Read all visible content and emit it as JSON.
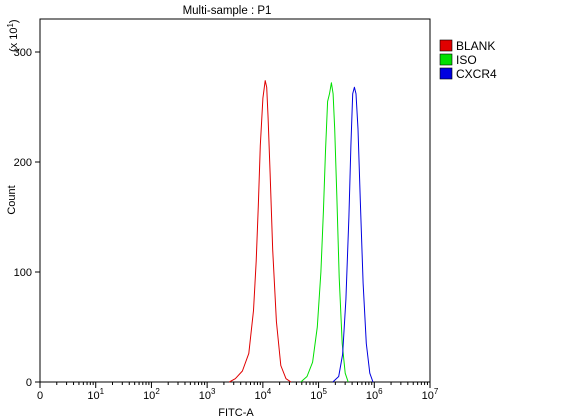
{
  "chart_data": {
    "type": "line",
    "title": "Multi-sample : P1",
    "xlabel": "FITC-A",
    "ylabel": "Count",
    "y_multiplier_label": "(x 10",
    "y_multiplier_exponent": "1",
    "y_multiplier_close": ")",
    "x_scale": "log",
    "xlim": [
      1,
      10000000
    ],
    "ylim": [
      0,
      330
    ],
    "x_ticks": [
      {
        "base": "0",
        "exp": "",
        "value": 1
      },
      {
        "base": "10",
        "exp": "1",
        "value": 10
      },
      {
        "base": "10",
        "exp": "2",
        "value": 100
      },
      {
        "base": "10",
        "exp": "3",
        "value": 1000
      },
      {
        "base": "10",
        "exp": "4",
        "value": 10000
      },
      {
        "base": "10",
        "exp": "5",
        "value": 100000
      },
      {
        "base": "10",
        "exp": "6",
        "value": 1000000
      },
      {
        "base": "10",
        "exp": "7",
        "value": 10000000
      }
    ],
    "y_ticks": [
      0,
      100,
      200,
      300
    ],
    "legend_position": "top-right",
    "series": [
      {
        "name": "BLANK",
        "color": "#e00000",
        "x": [
          2500,
          3200,
          4300,
          5600,
          6800,
          7600,
          8300,
          9000,
          10000,
          11000,
          11700,
          12400,
          13500,
          15000,
          17500,
          21000,
          26000,
          32000
        ],
        "y": [
          0,
          3,
          10,
          26,
          65,
          110,
          160,
          215,
          258,
          274,
          268,
          240,
          190,
          120,
          55,
          15,
          3,
          0
        ]
      },
      {
        "name": "ISO",
        "color": "#00e000",
        "x": [
          48000,
          62000,
          78000,
          95000,
          110000,
          122000,
          133000,
          145000,
          157000,
          170000,
          182000,
          195000,
          212000,
          235000,
          265000,
          300000,
          340000
        ],
        "y": [
          0,
          5,
          18,
          50,
          100,
          155,
          210,
          255,
          262,
          272,
          262,
          230,
          170,
          95,
          35,
          8,
          0
        ]
      },
      {
        "name": "CXCR4",
        "color": "#0000e0",
        "x": [
          180000,
          230000,
          270000,
          310000,
          350000,
          380000,
          410000,
          440000,
          470000,
          510000,
          560000,
          630000,
          720000,
          830000,
          950000
        ],
        "y": [
          0,
          5,
          25,
          75,
          150,
          215,
          262,
          268,
          262,
          230,
          165,
          90,
          35,
          8,
          0
        ]
      }
    ]
  }
}
